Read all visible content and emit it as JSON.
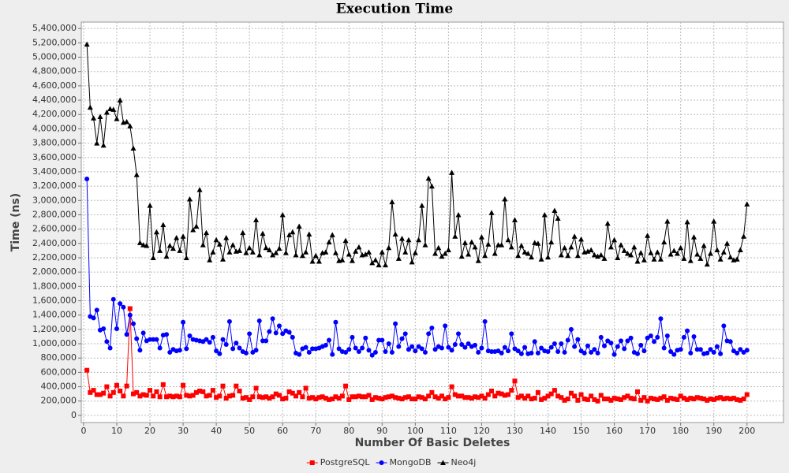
{
  "chart_data": {
    "type": "line",
    "title": "Execution Time",
    "x_label": "Number Of Basic Deletes",
    "y_label": "Time (ns)",
    "grid": true,
    "legend": "bottom",
    "xlim": [
      -0.7,
      211
    ],
    "xticks": [
      0,
      10,
      20,
      30,
      40,
      50,
      60,
      70,
      80,
      90,
      100,
      110,
      120,
      130,
      140,
      150,
      160,
      170,
      180,
      190,
      200
    ],
    "ylim": [
      -100000,
      5490000
    ],
    "yticks": [
      {
        "value": 0,
        "label": "0"
      },
      {
        "value": 200000,
        "label": "200,000"
      },
      {
        "value": 400000,
        "label": "400,000"
      },
      {
        "value": 600000,
        "label": "600,000"
      },
      {
        "value": 800000,
        "label": "800,000"
      },
      {
        "value": 1000000,
        "label": "1,000,000"
      },
      {
        "value": 1200000,
        "label": "1,200,000"
      },
      {
        "value": 1400000,
        "label": "1,400,000"
      },
      {
        "value": 1600000,
        "label": "1,600,000"
      },
      {
        "value": 1800000,
        "label": "1,800,000"
      },
      {
        "value": 2000000,
        "label": "2,000,000"
      },
      {
        "value": 2200000,
        "label": "2,200,000"
      },
      {
        "value": 2400000,
        "label": "2,400,000"
      },
      {
        "value": 2600000,
        "label": "2,600,000"
      },
      {
        "value": 2800000,
        "label": "2,800,000"
      },
      {
        "value": 3000000,
        "label": "3,000,000"
      },
      {
        "value": 3200000,
        "label": "3,200,000"
      },
      {
        "value": 3400000,
        "label": "3,400,000"
      },
      {
        "value": 3600000,
        "label": "3,600,000"
      },
      {
        "value": 3800000,
        "label": "3,800,000"
      },
      {
        "value": 4000000,
        "label": "4,000,000"
      },
      {
        "value": 4200000,
        "label": "4,200,000"
      },
      {
        "value": 4400000,
        "label": "4,400,000"
      },
      {
        "value": 4600000,
        "label": "4,600,000"
      },
      {
        "value": 4800000,
        "label": "4,800,000"
      },
      {
        "value": 5000000,
        "label": "5,000,000"
      },
      {
        "value": 5200000,
        "label": "5,200,000"
      },
      {
        "value": 5400000,
        "label": "5,400,000"
      }
    ],
    "x": [
      1,
      2,
      3,
      4,
      5,
      6,
      7,
      8,
      9,
      10,
      11,
      12,
      13,
      14,
      15,
      16,
      17,
      18,
      19,
      20,
      21,
      22,
      23,
      24,
      25,
      26,
      27,
      28,
      29,
      30,
      31,
      32,
      33,
      34,
      35,
      36,
      37,
      38,
      39,
      40,
      41,
      42,
      43,
      44,
      45,
      46,
      47,
      48,
      49,
      50,
      51,
      52,
      53,
      54,
      55,
      56,
      57,
      58,
      59,
      60,
      61,
      62,
      63,
      64,
      65,
      66,
      67,
      68,
      69,
      70,
      71,
      72,
      73,
      74,
      75,
      76,
      77,
      78,
      79,
      80,
      81,
      82,
      83,
      84,
      85,
      86,
      87,
      88,
      89,
      90,
      91,
      92,
      93,
      94,
      95,
      96,
      97,
      98,
      99,
      100,
      101,
      102,
      103,
      104,
      105,
      106,
      107,
      108,
      109,
      110,
      111,
      112,
      113,
      114,
      115,
      116,
      117,
      118,
      119,
      120,
      121,
      122,
      123,
      124,
      125,
      126,
      127,
      128,
      129,
      130,
      131,
      132,
      133,
      134,
      135,
      136,
      137,
      138,
      139,
      140,
      141,
      142,
      143,
      144,
      145,
      146,
      147,
      148,
      149,
      150,
      151,
      152,
      153,
      154,
      155,
      156,
      157,
      158,
      159,
      160,
      161,
      162,
      163,
      164,
      165,
      166,
      167,
      168,
      169,
      170,
      171,
      172,
      173,
      174,
      175,
      176,
      177,
      178,
      179,
      180,
      181,
      182,
      183,
      184,
      185,
      186,
      187,
      188,
      189,
      190,
      191,
      192,
      193,
      194,
      195,
      196,
      197,
      198,
      199,
      200
    ],
    "series": [
      {
        "name": "PostgreSQL",
        "color": "#ff0000",
        "marker": "square",
        "values": [
          630000,
          320000,
          350000,
          290000,
          290000,
          310000,
          400000,
          270000,
          320000,
          420000,
          340000,
          270000,
          410000,
          1490000,
          300000,
          320000,
          270000,
          290000,
          280000,
          350000,
          270000,
          330000,
          260000,
          430000,
          260000,
          270000,
          260000,
          270000,
          260000,
          420000,
          280000,
          270000,
          280000,
          320000,
          340000,
          330000,
          270000,
          280000,
          350000,
          250000,
          270000,
          410000,
          240000,
          270000,
          280000,
          410000,
          340000,
          240000,
          250000,
          220000,
          260000,
          380000,
          260000,
          250000,
          260000,
          240000,
          260000,
          300000,
          280000,
          230000,
          240000,
          330000,
          310000,
          270000,
          320000,
          260000,
          380000,
          240000,
          250000,
          230000,
          250000,
          260000,
          240000,
          220000,
          230000,
          260000,
          240000,
          270000,
          410000,
          220000,
          260000,
          260000,
          270000,
          260000,
          260000,
          280000,
          220000,
          250000,
          240000,
          230000,
          250000,
          260000,
          270000,
          250000,
          240000,
          230000,
          250000,
          260000,
          230000,
          230000,
          260000,
          250000,
          230000,
          270000,
          320000,
          260000,
          240000,
          270000,
          230000,
          250000,
          400000,
          290000,
          270000,
          270000,
          250000,
          250000,
          240000,
          260000,
          250000,
          270000,
          240000,
          290000,
          340000,
          270000,
          310000,
          300000,
          280000,
          290000,
          350000,
          480000,
          250000,
          270000,
          240000,
          270000,
          230000,
          240000,
          320000,
          220000,
          240000,
          270000,
          300000,
          350000,
          270000,
          250000,
          210000,
          230000,
          310000,
          270000,
          210000,
          290000,
          230000,
          220000,
          270000,
          220000,
          200000,
          280000,
          230000,
          230000,
          210000,
          240000,
          230000,
          220000,
          250000,
          270000,
          240000,
          230000,
          330000,
          210000,
          250000,
          200000,
          240000,
          230000,
          220000,
          240000,
          260000,
          210000,
          240000,
          230000,
          220000,
          270000,
          240000,
          220000,
          240000,
          230000,
          250000,
          240000,
          230000,
          210000,
          230000,
          220000,
          240000,
          250000,
          230000,
          240000,
          230000,
          240000,
          220000,
          210000,
          230000,
          290000
        ]
      },
      {
        "name": "MongoDB",
        "color": "#0000ff",
        "marker": "circle",
        "values": [
          3300000,
          1380000,
          1360000,
          1470000,
          1190000,
          1210000,
          1030000,
          940000,
          1620000,
          1210000,
          1560000,
          1510000,
          1130000,
          1400000,
          1280000,
          1070000,
          910000,
          1150000,
          1040000,
          1060000,
          1060000,
          1060000,
          940000,
          1120000,
          1130000,
          880000,
          920000,
          900000,
          910000,
          1300000,
          930000,
          1110000,
          1060000,
          1050000,
          1040000,
          1030000,
          1060000,
          1020000,
          1090000,
          900000,
          860000,
          1060000,
          990000,
          1310000,
          930000,
          1010000,
          940000,
          890000,
          870000,
          1140000,
          880000,
          910000,
          1320000,
          1040000,
          1040000,
          1170000,
          1350000,
          1150000,
          1250000,
          1140000,
          1180000,
          1160000,
          1090000,
          870000,
          850000,
          930000,
          950000,
          880000,
          930000,
          930000,
          940000,
          960000,
          980000,
          1050000,
          850000,
          1300000,
          930000,
          890000,
          880000,
          920000,
          1090000,
          940000,
          890000,
          940000,
          1080000,
          910000,
          840000,
          880000,
          1050000,
          1050000,
          890000,
          1000000,
          880000,
          1280000,
          960000,
          1070000,
          1140000,
          920000,
          960000,
          900000,
          960000,
          930000,
          880000,
          1140000,
          1220000,
          920000,
          960000,
          940000,
          1250000,
          950000,
          910000,
          990000,
          1140000,
          990000,
          950000,
          1000000,
          960000,
          980000,
          880000,
          940000,
          1310000,
          900000,
          890000,
          890000,
          900000,
          870000,
          950000,
          900000,
          1140000,
          930000,
          900000,
          860000,
          950000,
          860000,
          870000,
          1030000,
          870000,
          940000,
          900000,
          890000,
          950000,
          1000000,
          890000,
          1000000,
          880000,
          1050000,
          1200000,
          960000,
          1060000,
          900000,
          870000,
          970000,
          880000,
          920000,
          870000,
          1090000,
          970000,
          1040000,
          1010000,
          850000,
          960000,
          1040000,
          930000,
          1040000,
          1080000,
          880000,
          860000,
          980000,
          900000,
          1080000,
          1110000,
          1030000,
          1090000,
          1350000,
          940000,
          1110000,
          890000,
          850000,
          910000,
          920000,
          1090000,
          1180000,
          870000,
          1100000,
          920000,
          920000,
          860000,
          870000,
          920000,
          880000,
          960000,
          860000,
          1250000,
          1040000,
          1030000,
          900000,
          870000,
          920000,
          880000,
          910000
        ]
      },
      {
        "name": "Neo4j",
        "color": "#000000",
        "marker": "triangle",
        "values": [
          5180000,
          4300000,
          4150000,
          3800000,
          4170000,
          3770000,
          4230000,
          4280000,
          4270000,
          4140000,
          4400000,
          4090000,
          4100000,
          4040000,
          3730000,
          3360000,
          2410000,
          2380000,
          2370000,
          2930000,
          2200000,
          2560000,
          2300000,
          2660000,
          2220000,
          2370000,
          2330000,
          2480000,
          2300000,
          2500000,
          2200000,
          3020000,
          2590000,
          2640000,
          3150000,
          2380000,
          2550000,
          2170000,
          2280000,
          2450000,
          2390000,
          2180000,
          2480000,
          2280000,
          2380000,
          2290000,
          2300000,
          2550000,
          2270000,
          2340000,
          2280000,
          2730000,
          2240000,
          2540000,
          2340000,
          2310000,
          2240000,
          2270000,
          2330000,
          2800000,
          2270000,
          2520000,
          2560000,
          2240000,
          2640000,
          2230000,
          2280000,
          2530000,
          2150000,
          2230000,
          2150000,
          2270000,
          2280000,
          2420000,
          2520000,
          2270000,
          2160000,
          2170000,
          2440000,
          2250000,
          2160000,
          2290000,
          2350000,
          2240000,
          2250000,
          2280000,
          2130000,
          2170000,
          2100000,
          2280000,
          2100000,
          2340000,
          2980000,
          2530000,
          2190000,
          2470000,
          2280000,
          2450000,
          2140000,
          2270000,
          2450000,
          2930000,
          2380000,
          3310000,
          3200000,
          2260000,
          2340000,
          2220000,
          2260000,
          2310000,
          3390000,
          2500000,
          2800000,
          2220000,
          2410000,
          2250000,
          2420000,
          2350000,
          2160000,
          2490000,
          2230000,
          2390000,
          2830000,
          2260000,
          2380000,
          2380000,
          3020000,
          2450000,
          2350000,
          2730000,
          2230000,
          2370000,
          2280000,
          2260000,
          2210000,
          2410000,
          2400000,
          2180000,
          2800000,
          2210000,
          2420000,
          2860000,
          2750000,
          2240000,
          2340000,
          2230000,
          2350000,
          2500000,
          2230000,
          2460000,
          2280000,
          2290000,
          2310000,
          2240000,
          2220000,
          2240000,
          2190000,
          2680000,
          2350000,
          2450000,
          2200000,
          2380000,
          2300000,
          2260000,
          2240000,
          2350000,
          2150000,
          2270000,
          2170000,
          2510000,
          2270000,
          2180000,
          2280000,
          2180000,
          2420000,
          2710000,
          2250000,
          2300000,
          2260000,
          2340000,
          2190000,
          2700000,
          2160000,
          2490000,
          2250000,
          2190000,
          2370000,
          2110000,
          2260000,
          2710000,
          2310000,
          2180000,
          2280000,
          2400000,
          2210000,
          2170000,
          2180000,
          2310000,
          2500000,
          2950000
        ]
      }
    ]
  }
}
